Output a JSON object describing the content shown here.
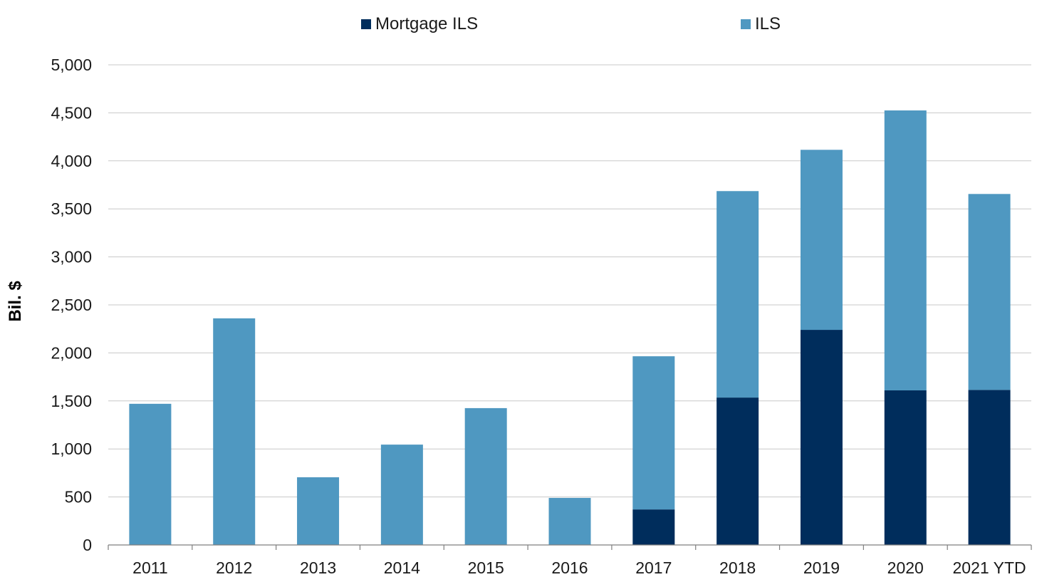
{
  "chart_data": {
    "type": "bar",
    "stacked": true,
    "title": "",
    "xlabel": "",
    "ylabel": "Bil. $",
    "ylim": [
      0,
      5000
    ],
    "yticks": [
      0,
      500,
      1000,
      1500,
      2000,
      2500,
      3000,
      3500,
      4000,
      4500,
      5000
    ],
    "ytick_labels": [
      "0",
      "500",
      "1,000",
      "1,500",
      "2,000",
      "2,500",
      "3,000",
      "3,500",
      "4,000",
      "4,500",
      "5,000"
    ],
    "grid": true,
    "legend_position": "top",
    "categories": [
      "2011",
      "2012",
      "2013",
      "2014",
      "2015",
      "2016",
      "2017",
      "2018",
      "2019",
      "2020",
      "2021 YTD"
    ],
    "series": [
      {
        "name": "Mortgage ILS",
        "color": "#002d5c",
        "values": [
          0,
          0,
          0,
          0,
          0,
          0,
          370,
          1535,
          2240,
          1610,
          1615
        ]
      },
      {
        "name": "ILS",
        "color": "#4f98c1",
        "values": [
          1470,
          2360,
          705,
          1045,
          1425,
          490,
          1595,
          2150,
          1875,
          2915,
          2040
        ]
      }
    ]
  },
  "colors": {
    "gridline": "#c8c8c8",
    "axis": "#7f7f7f"
  }
}
